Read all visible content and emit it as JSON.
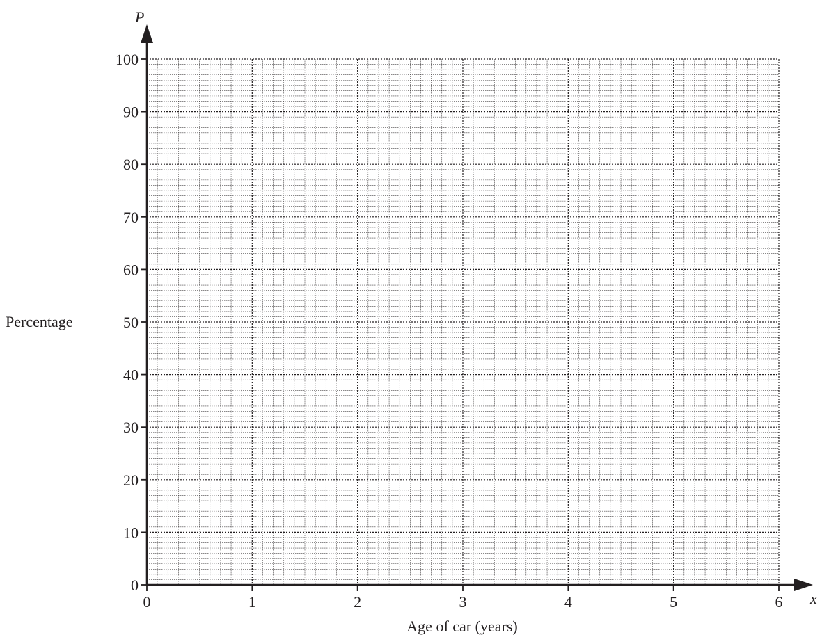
{
  "chart_data": {
    "type": "line",
    "title": "",
    "xlabel": "Age of car (years)",
    "ylabel": "Percentage",
    "x_axis_variable": "x",
    "y_axis_variable": "P",
    "xlim": [
      0,
      6
    ],
    "ylim": [
      0,
      100
    ],
    "x_ticks": [
      "0",
      "1",
      "2",
      "3",
      "4",
      "5",
      "6"
    ],
    "y_ticks": [
      "0",
      "10",
      "20",
      "30",
      "40",
      "50",
      "60",
      "70",
      "80",
      "90",
      "100"
    ],
    "grid": true,
    "grid_minor_divisions_x": 10,
    "grid_minor_divisions_y": 10,
    "series": [],
    "colors": {
      "axis": "#231f20",
      "grid": "#231f20"
    }
  }
}
